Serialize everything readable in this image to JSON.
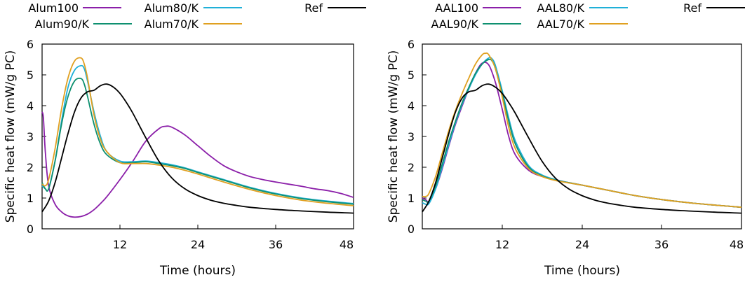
{
  "chart_data": [
    {
      "type": "line",
      "title": "",
      "xlabel": "Time (hours)",
      "ylabel": "Specific heat flow (mW/g PC)",
      "xlim": [
        0,
        48
      ],
      "ylim": [
        0,
        6
      ],
      "xticks": [
        "12",
        "24",
        "36",
        "48"
      ],
      "yticks": [
        "0",
        "1",
        "2",
        "3",
        "4",
        "5",
        "6"
      ],
      "legend_position": "top",
      "series": [
        {
          "name": "Alum100",
          "color": "#8b1fa9",
          "x": [
            0,
            0.2,
            0.5,
            1,
            2,
            3,
            4,
            5,
            6,
            7,
            8,
            9,
            10,
            12,
            14,
            16,
            18,
            19,
            20,
            22,
            24,
            26,
            28,
            30,
            32,
            34,
            36,
            38,
            40,
            42,
            44,
            46,
            48
          ],
          "y": [
            3.8,
            3.6,
            2.5,
            1.4,
            0.8,
            0.55,
            0.42,
            0.38,
            0.4,
            0.48,
            0.62,
            0.82,
            1.05,
            1.6,
            2.2,
            2.85,
            3.25,
            3.33,
            3.3,
            3.05,
            2.7,
            2.35,
            2.05,
            1.85,
            1.7,
            1.6,
            1.52,
            1.45,
            1.38,
            1.3,
            1.24,
            1.15,
            1.02
          ]
        },
        {
          "name": "Alum80/K",
          "color": "#20b0d8",
          "x": [
            0,
            0.5,
            1,
            2,
            3,
            4,
            5,
            6,
            6.5,
            7,
            8,
            9,
            10,
            12,
            14,
            16,
            18,
            20,
            22,
            24,
            28,
            32,
            36,
            40,
            44,
            48
          ],
          "y": [
            1.4,
            1.3,
            1.3,
            2.2,
            3.5,
            4.6,
            5.15,
            5.3,
            5.2,
            4.8,
            3.8,
            3.0,
            2.5,
            2.2,
            2.18,
            2.2,
            2.15,
            2.08,
            1.98,
            1.85,
            1.6,
            1.35,
            1.15,
            1.0,
            0.9,
            0.82
          ]
        },
        {
          "name": "Alum90/K",
          "color": "#0e9070",
          "x": [
            0,
            0.5,
            1,
            2,
            3,
            4,
            5,
            6,
            6.5,
            7,
            8,
            9,
            10,
            12,
            14,
            16,
            18,
            20,
            22,
            24,
            28,
            32,
            36,
            40,
            44,
            48
          ],
          "y": [
            1.5,
            1.3,
            1.3,
            2.2,
            3.4,
            4.3,
            4.8,
            4.88,
            4.7,
            4.3,
            3.4,
            2.75,
            2.4,
            2.15,
            2.15,
            2.18,
            2.12,
            2.05,
            1.96,
            1.83,
            1.58,
            1.33,
            1.13,
            0.98,
            0.88,
            0.8
          ]
        },
        {
          "name": "Alum70/K",
          "color": "#e0a020",
          "x": [
            0,
            0.5,
            1,
            2,
            3,
            4,
            5,
            6,
            6.5,
            7,
            8,
            9,
            10,
            12,
            14,
            16,
            18,
            20,
            22,
            24,
            28,
            32,
            36,
            40,
            44,
            48
          ],
          "y": [
            1.45,
            1.4,
            1.6,
            2.6,
            3.9,
            4.9,
            5.45,
            5.55,
            5.35,
            4.9,
            3.7,
            2.9,
            2.5,
            2.15,
            2.12,
            2.12,
            2.07,
            2.0,
            1.9,
            1.78,
            1.52,
            1.28,
            1.08,
            0.93,
            0.83,
            0.75
          ]
        },
        {
          "name": "Ref",
          "color": "#000000",
          "x": [
            0,
            1,
            2,
            3,
            4,
            5,
            6,
            7,
            8,
            9,
            10,
            11,
            12,
            13,
            14,
            16,
            18,
            20,
            22,
            24,
            26,
            28,
            30,
            32,
            36,
            40,
            44,
            48
          ],
          "y": [
            0.55,
            0.9,
            1.5,
            2.3,
            3.1,
            3.8,
            4.25,
            4.45,
            4.5,
            4.65,
            4.7,
            4.6,
            4.4,
            4.1,
            3.75,
            2.95,
            2.2,
            1.65,
            1.3,
            1.08,
            0.93,
            0.83,
            0.76,
            0.7,
            0.63,
            0.58,
            0.54,
            0.51
          ]
        }
      ]
    },
    {
      "type": "line",
      "title": "",
      "xlabel": "Time (hours)",
      "ylabel": "Specific heat flow (mW/g PC)",
      "xlim": [
        0,
        48
      ],
      "ylim": [
        0,
        6
      ],
      "xticks": [
        "12",
        "24",
        "36",
        "48"
      ],
      "yticks": [
        "0",
        "1",
        "2",
        "3",
        "4",
        "5",
        "6"
      ],
      "legend_position": "top",
      "series": [
        {
          "name": "AAL100",
          "color": "#8b1fa9",
          "x": [
            0,
            0.5,
            1,
            2,
            3,
            4,
            5,
            6,
            7,
            8,
            9,
            10,
            11,
            12,
            13,
            14,
            16,
            18,
            20,
            22,
            24,
            28,
            32,
            36,
            40,
            44,
            48
          ],
          "y": [
            1.0,
            0.95,
            0.9,
            1.3,
            1.95,
            2.7,
            3.4,
            4.0,
            4.55,
            5.05,
            5.38,
            5.32,
            4.75,
            3.9,
            3.0,
            2.4,
            1.9,
            1.7,
            1.6,
            1.5,
            1.42,
            1.25,
            1.08,
            0.95,
            0.85,
            0.77,
            0.7
          ]
        },
        {
          "name": "AAL80/K",
          "color": "#20b0d8",
          "x": [
            0,
            0.5,
            1,
            2,
            3,
            4,
            5,
            6,
            7,
            8,
            9,
            10,
            10.5,
            11,
            12,
            13,
            14,
            16,
            18,
            20,
            22,
            24,
            28,
            32,
            36,
            40,
            44,
            48
          ],
          "y": [
            0.85,
            0.8,
            0.82,
            1.3,
            2.0,
            2.75,
            3.45,
            4.05,
            4.55,
            5.0,
            5.35,
            5.55,
            5.52,
            5.3,
            4.5,
            3.6,
            2.85,
            2.05,
            1.75,
            1.6,
            1.5,
            1.42,
            1.25,
            1.08,
            0.95,
            0.85,
            0.77,
            0.7
          ]
        },
        {
          "name": "AAL90/K",
          "color": "#0e9070",
          "x": [
            0,
            0.5,
            1,
            2,
            3,
            4,
            5,
            6,
            7,
            8,
            9,
            10,
            10.5,
            11,
            12,
            13,
            14,
            16,
            18,
            20,
            22,
            24,
            28,
            32,
            36,
            40,
            44,
            48
          ],
          "y": [
            0.95,
            0.9,
            0.9,
            1.4,
            2.1,
            2.85,
            3.5,
            4.1,
            4.6,
            5.05,
            5.35,
            5.5,
            5.45,
            5.2,
            4.4,
            3.5,
            2.75,
            2.0,
            1.72,
            1.58,
            1.5,
            1.42,
            1.25,
            1.08,
            0.95,
            0.85,
            0.77,
            0.7
          ]
        },
        {
          "name": "AAL70/K",
          "color": "#e0a020",
          "x": [
            0,
            0.5,
            1,
            2,
            3,
            4,
            5,
            6,
            7,
            8,
            9,
            9.5,
            10,
            11,
            12,
            13,
            14,
            16,
            18,
            20,
            22,
            24,
            28,
            32,
            36,
            40,
            44,
            48
          ],
          "y": [
            1.05,
            1.05,
            1.15,
            1.7,
            2.45,
            3.2,
            3.85,
            4.4,
            4.9,
            5.35,
            5.65,
            5.7,
            5.65,
            5.2,
            4.3,
            3.3,
            2.6,
            1.95,
            1.7,
            1.57,
            1.49,
            1.42,
            1.25,
            1.08,
            0.95,
            0.85,
            0.77,
            0.7
          ]
        },
        {
          "name": "Ref",
          "color": "#000000",
          "x": [
            0,
            1,
            2,
            3,
            4,
            5,
            6,
            7,
            8,
            9,
            10,
            11,
            12,
            13,
            14,
            16,
            18,
            20,
            22,
            24,
            26,
            28,
            30,
            32,
            36,
            40,
            44,
            48
          ],
          "y": [
            0.55,
            0.9,
            1.5,
            2.3,
            3.1,
            3.8,
            4.25,
            4.45,
            4.5,
            4.65,
            4.7,
            4.6,
            4.4,
            4.1,
            3.75,
            2.95,
            2.2,
            1.65,
            1.3,
            1.08,
            0.93,
            0.83,
            0.76,
            0.7,
            0.63,
            0.58,
            0.54,
            0.51
          ]
        }
      ]
    }
  ]
}
